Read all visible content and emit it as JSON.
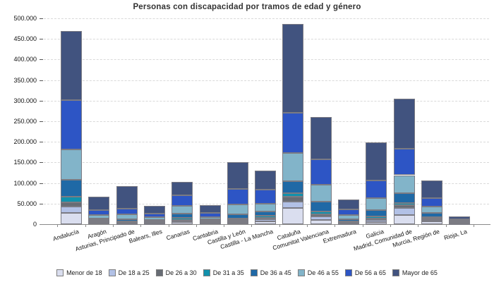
{
  "chart_data": {
    "type": "bar",
    "stacked": true,
    "title": "Personas con discapacidad por tramos de edad y género",
    "xlabel": "",
    "ylabel": "",
    "ylim": [
      0,
      500000
    ],
    "ytick_step": 50000,
    "y_tick_labels": [
      "0",
      "50.000",
      "100.000",
      "150.000",
      "200.000",
      "250.000",
      "300.000",
      "350.000",
      "400.000",
      "450.000",
      "500.000"
    ],
    "grid": "horizontal-dashed",
    "legend_position": "bottom",
    "categories": [
      "Andalucía",
      "Aragón",
      "Asturias, Principado de",
      "Balears, Illes",
      "Canarias",
      "Cantabria",
      "Castilla y León",
      "Castilla - La Mancha",
      "Cataluña",
      "Comunitat Valenciana",
      "Extremadura",
      "Galicia",
      "Madrid, Comunidad de",
      "Murcia, Región de",
      "Rioja, La"
    ],
    "series": [
      {
        "name": "Menor de 18",
        "color": "#dadeef",
        "values": [
          28000,
          3000,
          2500,
          2500,
          5000,
          3000,
          4000,
          7500,
          40000,
          11000,
          2500,
          5500,
          23000,
          6000,
          1500
        ]
      },
      {
        "name": "De 18 a 25",
        "color": "#b2c1e6",
        "values": [
          15000,
          2500,
          2000,
          2000,
          3500,
          2000,
          3000,
          4000,
          15000,
          8000,
          2000,
          4000,
          17000,
          3500,
          1000
        ]
      },
      {
        "name": "De 26 a 30",
        "color": "#676c74",
        "values": [
          10000,
          2000,
          1500,
          1300,
          2500,
          1500,
          3500,
          4000,
          11000,
          5500,
          1500,
          4500,
          5500,
          3500,
          800
        ]
      },
      {
        "name": "De 31 a 35",
        "color": "#1191ac",
        "values": [
          14000,
          2000,
          1500,
          1200,
          4500,
          1500,
          4000,
          4500,
          9000,
          7000,
          1500,
          4500,
          5500,
          4000,
          800
        ]
      },
      {
        "name": "De 36 a 45",
        "color": "#1f69a6",
        "values": [
          41000,
          4500,
          5000,
          3500,
          10000,
          4000,
          10000,
          10000,
          30000,
          23000,
          4000,
          16000,
          24000,
          10000,
          1800
        ]
      },
      {
        "name": "De 46 a 55",
        "color": "#82b4c9",
        "values": [
          73000,
          7500,
          11000,
          6000,
          19000,
          5000,
          23000,
          20000,
          68000,
          42000,
          10000,
          29000,
          44000,
          16000,
          2800
        ]
      },
      {
        "name": "De 56 a 65",
        "color": "#2d55c5",
        "values": [
          120000,
          13000,
          15000,
          8500,
          25000,
          10000,
          38000,
          34000,
          98000,
          61000,
          14500,
          42000,
          65000,
          20000,
          3800
        ]
      },
      {
        "name": "Mayor de 65",
        "color": "#41537f",
        "values": [
          168000,
          32500,
          54000,
          20000,
          33000,
          20000,
          65000,
          46000,
          215000,
          103000,
          24000,
          93000,
          120000,
          44000,
          6000
        ]
      }
    ],
    "style": {
      "grid_color": "#d9d9d9",
      "axis_color": "#8a8a8a",
      "segment_border_color": "#7b7b83",
      "title_color": "#333333",
      "label_color": "#111111",
      "background": "#ffffff"
    }
  }
}
